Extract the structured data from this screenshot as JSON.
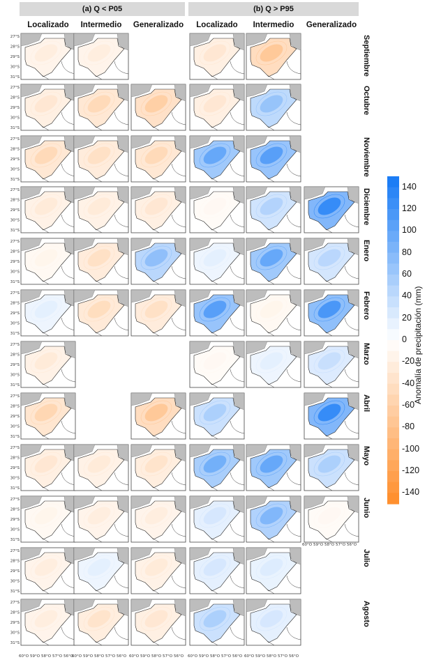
{
  "strips": [
    {
      "label": "(a) Q < P05"
    },
    {
      "label": "(b) Q > P95"
    }
  ],
  "columns": [
    "Localizado",
    "Intermedio",
    "Generalizado",
    "Localizado",
    "Intermedio",
    "Generalizado"
  ],
  "rows": [
    "Septiembre",
    "Octubre",
    "Noviembre",
    "Diciembre",
    "Enero",
    "Febrero",
    "Marzo",
    "Abril",
    "Mayo",
    "Junio",
    "Julio",
    "Agosto"
  ],
  "lat_ticks": [
    "27°S",
    "28°S",
    "29°S",
    "30°S",
    "31°S"
  ],
  "lon_ticks": [
    "60°O",
    "59°O",
    "58°O",
    "57°O",
    "56°O"
  ],
  "legend": {
    "title": "Anomalía de precipitación (mm)",
    "ticks": [
      "140",
      "120",
      "100",
      "80",
      "60",
      "40",
      "20",
      "0",
      "-20",
      "-40",
      "-60",
      "-80",
      "-100",
      "-120",
      "-140"
    ]
  },
  "panels": [
    [
      -25,
      -25,
      null,
      -35,
      -80,
      null
    ],
    [
      -35,
      -55,
      -70,
      -35,
      75,
      null
    ],
    [
      -55,
      -45,
      -55,
      110,
      120,
      null
    ],
    [
      -30,
      -30,
      -35,
      -10,
      55,
      145
    ],
    [
      -15,
      -45,
      80,
      20,
      110,
      50
    ],
    [
      20,
      -50,
      -45,
      120,
      -15,
      130
    ],
    [
      -30,
      null,
      null,
      -10,
      20,
      40
    ],
    [
      -60,
      null,
      -80,
      60,
      null,
      145
    ],
    [
      -35,
      -30,
      -40,
      100,
      110,
      60
    ],
    [
      -15,
      -25,
      -25,
      30,
      90,
      -10
    ],
    [
      -25,
      20,
      -30,
      30,
      25,
      null
    ],
    [
      -25,
      -40,
      -35,
      60,
      30,
      null
    ]
  ]
}
